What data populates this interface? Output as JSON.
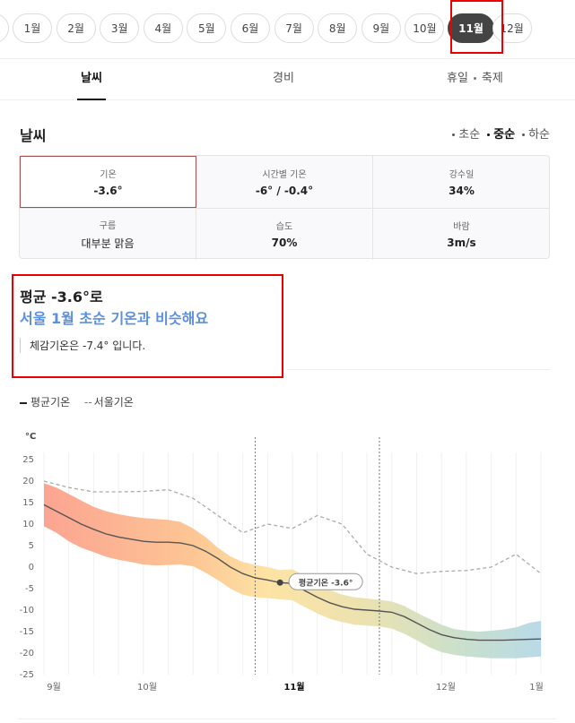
{
  "months": {
    "items": [
      "1월",
      "2월",
      "3월",
      "4월",
      "5월",
      "6월",
      "7월",
      "8월",
      "9월",
      "10월",
      "11월",
      "12월"
    ],
    "active": "11월"
  },
  "tabs": {
    "weather": "날씨",
    "cost": "경비",
    "holiday": "휴일",
    "festival": "축제"
  },
  "weather": {
    "title": "날씨",
    "periods": [
      "초순",
      "중순",
      "하순"
    ],
    "active_period": "중순",
    "stats": {
      "temp_label": "기온",
      "temp_value": "-3.6°",
      "hourly_label": "시간별 기온",
      "hourly_value": "-6° / -0.4°",
      "rain_label": "강수일",
      "rain_value": "34%",
      "cloud_label": "구름",
      "cloud_value": "대부분 맑음",
      "humidity_label": "습도",
      "humidity_value": "70%",
      "wind_label": "바람",
      "wind_value": "3m/s"
    },
    "avg_text": "평균 -3.6°로",
    "similar_text": "서울 1월 초순 기온과 비슷해요",
    "feels_text": "체감기온은 -7.4° 입니다."
  },
  "legend": {
    "avg": "평균기온",
    "seoul": "서울기온"
  },
  "chart_data": {
    "type": "line",
    "unit": "°C",
    "ylim": [
      -25,
      25
    ],
    "yticks": [
      25,
      20,
      15,
      10,
      5,
      0,
      -5,
      -10,
      -15,
      -20,
      -25
    ],
    "x_labels": [
      "9월",
      "10월",
      "11월",
      "12월",
      "1월"
    ],
    "annotation": "평균기온 -3.6°",
    "series": [
      {
        "name": "평균기온",
        "x": [
          0,
          0.1,
          0.2,
          0.3,
          0.4,
          0.5,
          0.6,
          0.7,
          0.8,
          0.9,
          1.0,
          1.1,
          1.2,
          1.3,
          1.4,
          1.5,
          1.6,
          1.7,
          1.8,
          1.9,
          2.0,
          2.1,
          2.2,
          2.3,
          2.4,
          2.5,
          2.6,
          2.7,
          2.8,
          2.9,
          3.0,
          3.1,
          3.2,
          3.3,
          3.4,
          3.5,
          3.6,
          3.7,
          3.8,
          3.9,
          4.0
        ],
        "values": [
          14.5,
          13,
          11.5,
          10,
          8.8,
          7.7,
          7,
          6.5,
          6,
          5.8,
          5.8,
          5.6,
          5,
          3.7,
          2,
          0,
          -1.5,
          -2.5,
          -3,
          -3.6,
          -3.8,
          -5.5,
          -7,
          -8.3,
          -9.2,
          -9.8,
          -10,
          -10.2,
          -10.5,
          -11.5,
          -13,
          -14.5,
          -15.7,
          -16.4,
          -16.8,
          -17,
          -17,
          -17,
          -16.9,
          -16.8,
          -16.7
        ]
      },
      {
        "name": "서울기온",
        "x": [
          0,
          0.2,
          0.4,
          0.6,
          0.8,
          1.0,
          1.2,
          1.4,
          1.6,
          1.8,
          2.0,
          2.2,
          2.4,
          2.6,
          2.8,
          3.0,
          3.2,
          3.4,
          3.6,
          3.8,
          4.0
        ],
        "values": [
          20,
          18.5,
          17.5,
          17.5,
          17.6,
          18,
          16,
          12,
          8,
          10,
          9,
          12,
          10,
          3,
          0,
          -1.5,
          -1,
          -0.8,
          0,
          3,
          -1.5
        ]
      }
    ],
    "band_upper": [
      19.5,
      18.5,
      17,
      15.5,
      14,
      13,
      12.3,
      11.8,
      11.4,
      11.2,
      11,
      10.5,
      9,
      7,
      4.5,
      2.5,
      1.2,
      0.5,
      0,
      -0.7,
      -0.5,
      -2,
      -3.8,
      -5.3,
      -6.4,
      -7,
      -7.3,
      -7.6,
      -8,
      -9,
      -10.6,
      -12,
      -13.4,
      -14.4,
      -14.8,
      -15,
      -14.8,
      -14.5,
      -14,
      -13,
      -12.5
    ],
    "band_lower": [
      9.5,
      8,
      6,
      4.5,
      3.5,
      2.4,
      1.7,
      1.2,
      0.6,
      0.4,
      0.5,
      0.6,
      0.2,
      -1.3,
      -3,
      -5,
      -6.4,
      -7,
      -7.2,
      -7.5,
      -7.7,
      -9.3,
      -10.8,
      -12,
      -12.8,
      -13.4,
      -13.6,
      -13.8,
      -14.3,
      -15.5,
      -17,
      -18.6,
      -19.8,
      -20.4,
      -20.8,
      -21,
      -21.2,
      -21.2,
      -21.2,
      -21,
      -20.8
    ],
    "vlines": [
      1.7,
      2.7
    ],
    "marker_x": 1.9
  }
}
